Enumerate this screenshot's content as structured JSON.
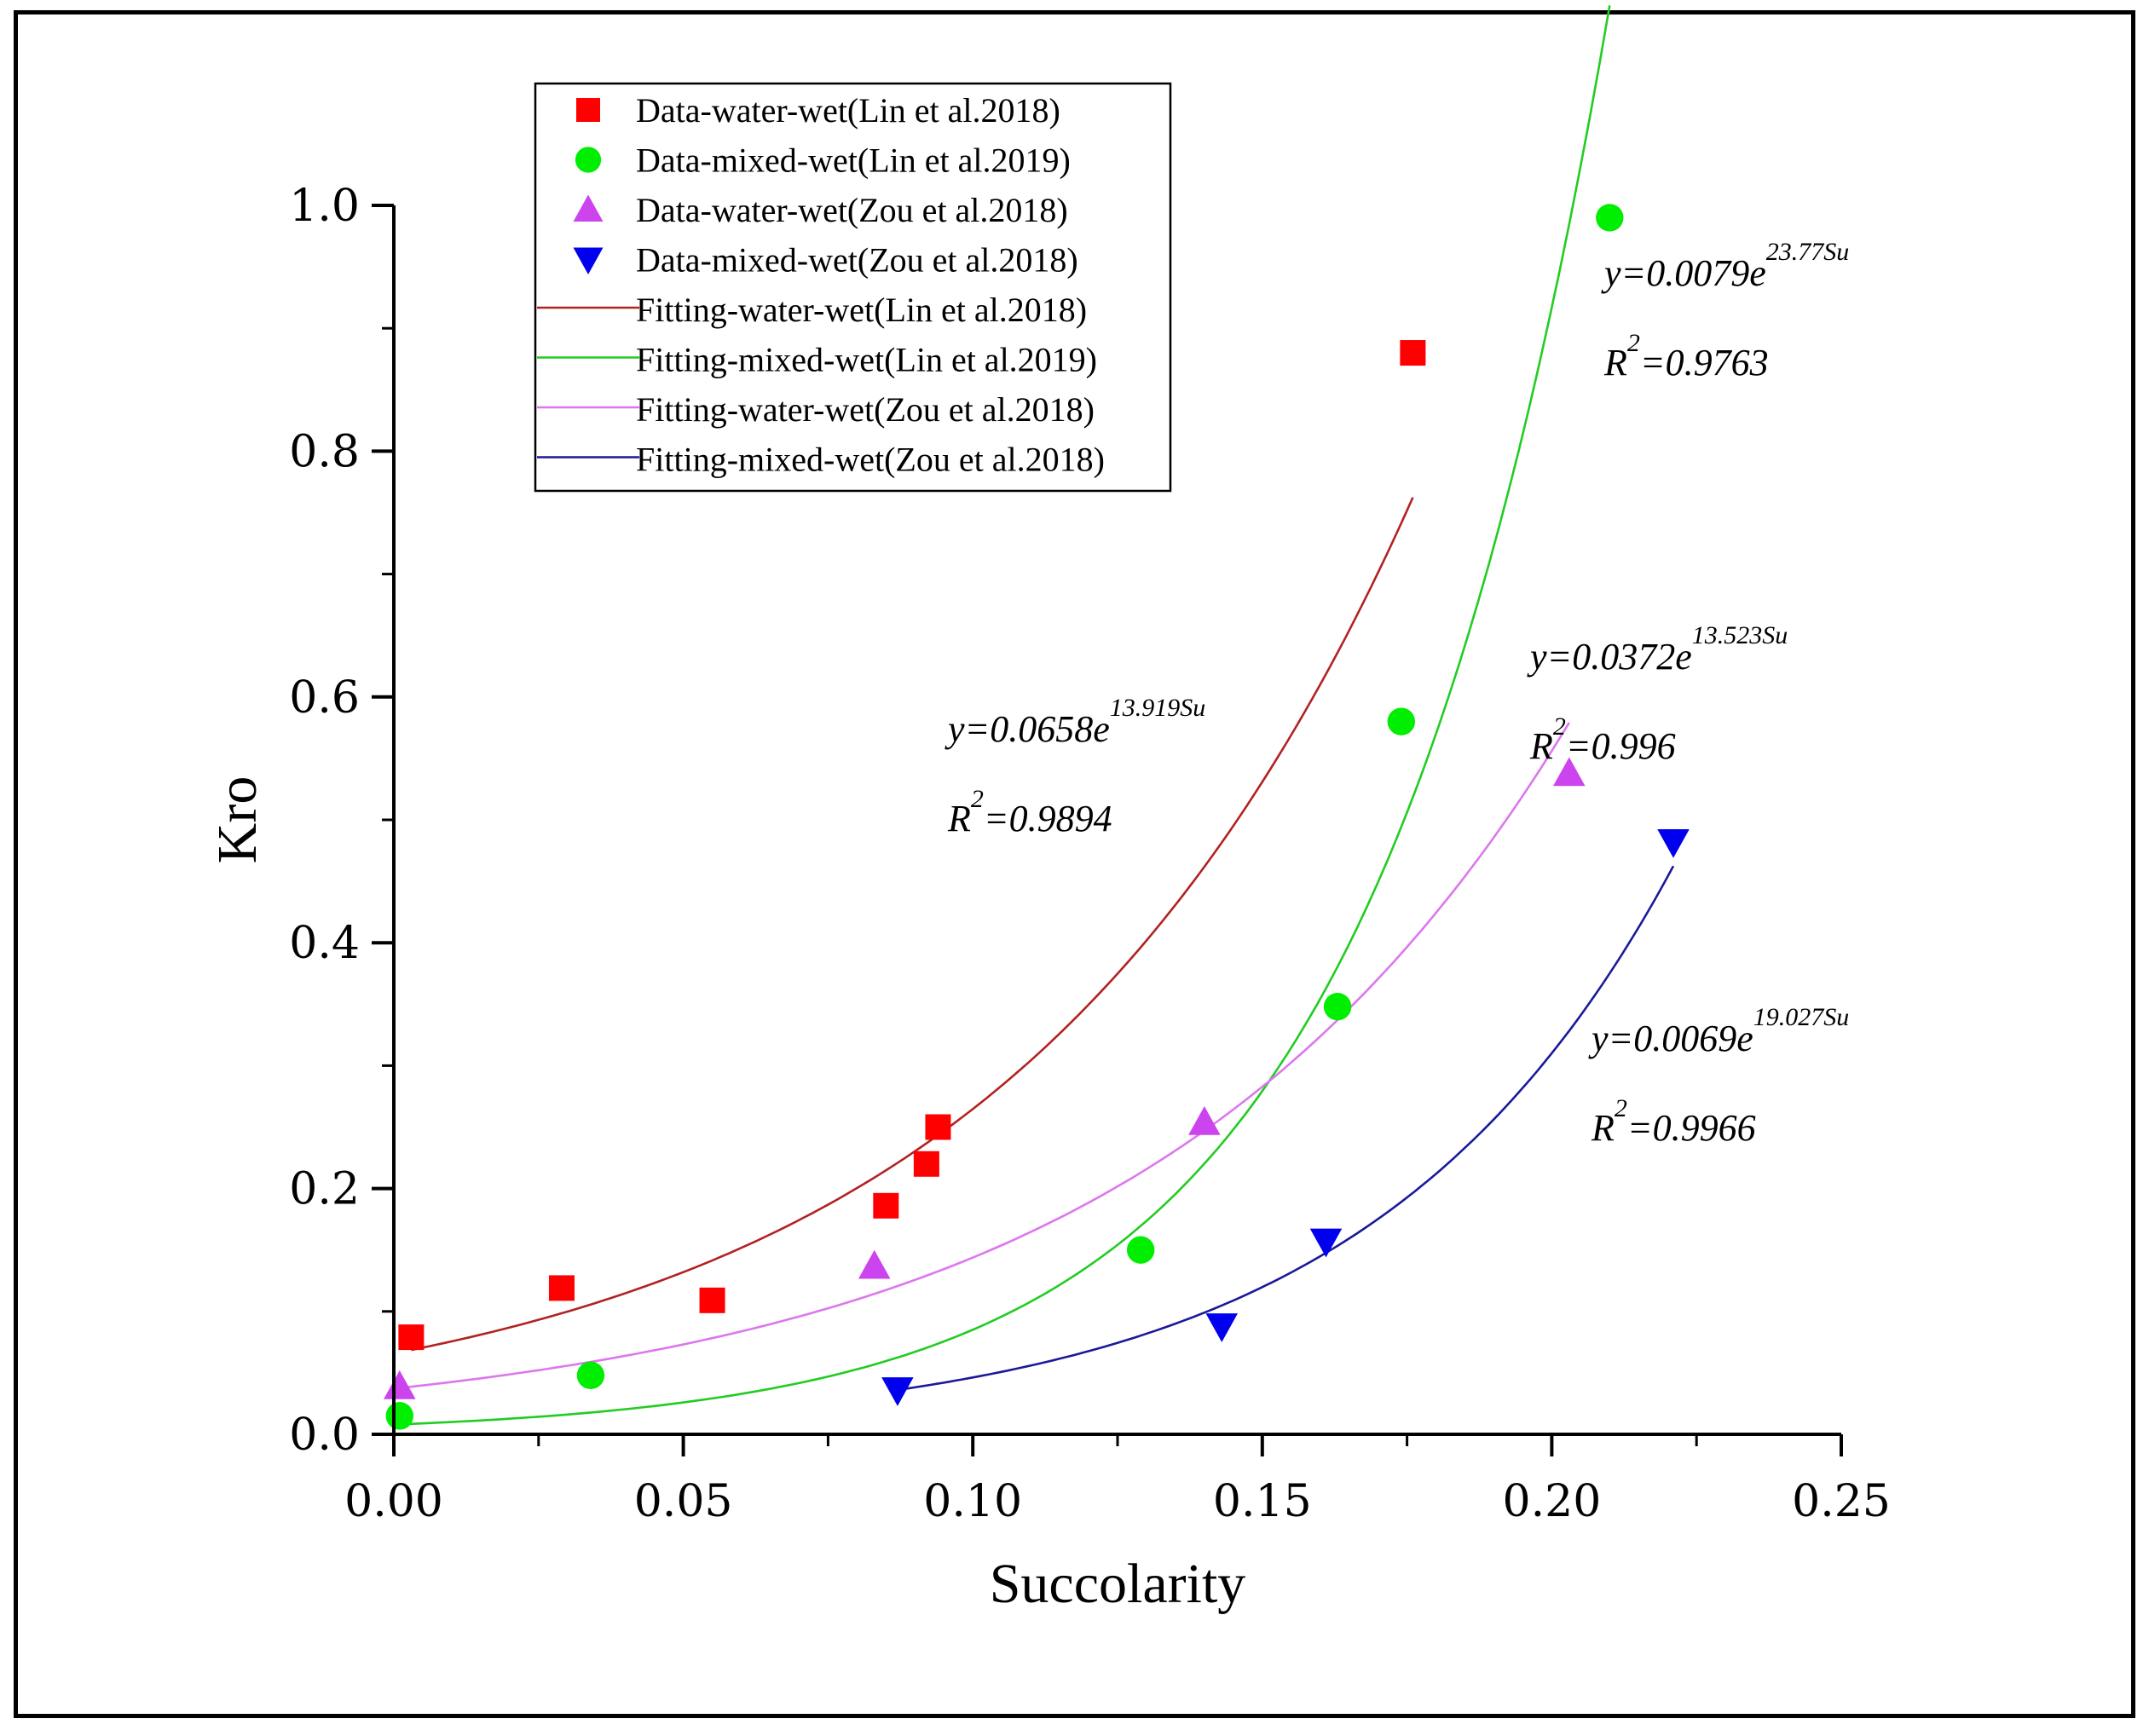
{
  "chart_data": {
    "type": "scatter",
    "xlabel": "Succolarity",
    "ylabel": "Kro",
    "xlim": [
      0,
      0.25
    ],
    "ylim": [
      0,
      1.0
    ],
    "x_ticks": [
      "0.00",
      "0.05",
      "0.10",
      "0.15",
      "0.20",
      "0.25"
    ],
    "y_ticks": [
      "0.0",
      "0.2",
      "0.4",
      "0.6",
      "0.8",
      "1.0"
    ],
    "grid": false,
    "legend_position": "top-left",
    "series": [
      {
        "name": "Data-water-wet(Lin et al.2018)",
        "kind": "points",
        "marker": "square",
        "color": "#ff0000",
        "x": [
          0.003,
          0.029,
          0.055,
          0.085,
          0.092,
          0.094,
          0.176
        ],
        "y": [
          0.079,
          0.119,
          0.109,
          0.186,
          0.22,
          0.25,
          0.88
        ]
      },
      {
        "name": "Data-mixed-wet(Lin et al.2019)",
        "kind": "points",
        "marker": "circle",
        "color": "#00ee00",
        "x": [
          0.001,
          0.034,
          0.129,
          0.163,
          0.174,
          0.21
        ],
        "y": [
          0.015,
          0.048,
          0.15,
          0.348,
          0.58,
          0.99
        ]
      },
      {
        "name": "Data-water-wet(Zou et al.2018)",
        "kind": "points",
        "marker": "triangle-up",
        "color": "#cc44ee",
        "x": [
          0.001,
          0.083,
          0.14,
          0.203
        ],
        "y": [
          0.039,
          0.137,
          0.254,
          0.538
        ]
      },
      {
        "name": "Data-mixed-wet(Zou et al.2018)",
        "kind": "points",
        "marker": "triangle-down",
        "color": "#0000ee",
        "x": [
          0.087,
          0.143,
          0.161,
          0.221
        ],
        "y": [
          0.036,
          0.088,
          0.157,
          0.482
        ]
      },
      {
        "name": "Fitting-water-wet(Lin et al.2018)",
        "kind": "fit",
        "color": "#b22222",
        "a": 0.0658,
        "b": 13.919,
        "x_range": [
          0.003,
          0.176
        ]
      },
      {
        "name": "Fitting-mixed-wet(Lin et al.2019)",
        "kind": "fit",
        "color": "#22cc22",
        "a": 0.0079,
        "b": 23.77,
        "x_range": [
          0.001,
          0.21
        ]
      },
      {
        "name": "Fitting-water-wet(Zou et al.2018)",
        "kind": "fit",
        "color": "#dd77ee",
        "a": 0.0372,
        "b": 13.523,
        "x_range": [
          0.001,
          0.203
        ]
      },
      {
        "name": "Fitting-mixed-wet(Zou et al.2018)",
        "kind": "fit",
        "color": "#1a1a99",
        "a": 0.0069,
        "b": 19.027,
        "x_range": [
          0.087,
          0.221
        ]
      }
    ],
    "annotations": [
      {
        "eq_main": "y=0.0658e",
        "eq_exp": "13.919Su",
        "r_main": "R",
        "r_exp": "2",
        "r_val": "=0.9894",
        "anchor": "lin-water"
      },
      {
        "eq_main": "y=0.0079e",
        "eq_exp": "23.77Su",
        "r_main": "R",
        "r_exp": "2",
        "r_val": "=0.9763",
        "anchor": "lin-mixed"
      },
      {
        "eq_main": "y=0.0372e",
        "eq_exp": "13.523Su",
        "r_main": "R",
        "r_exp": "2",
        "r_val": "=0.996",
        "anchor": "zou-water"
      },
      {
        "eq_main": "y=0.0069e",
        "eq_exp": "19.027Su",
        "r_main": "R",
        "r_exp": "2",
        "r_val": "=0.9966",
        "anchor": "zou-mixed"
      }
    ]
  }
}
